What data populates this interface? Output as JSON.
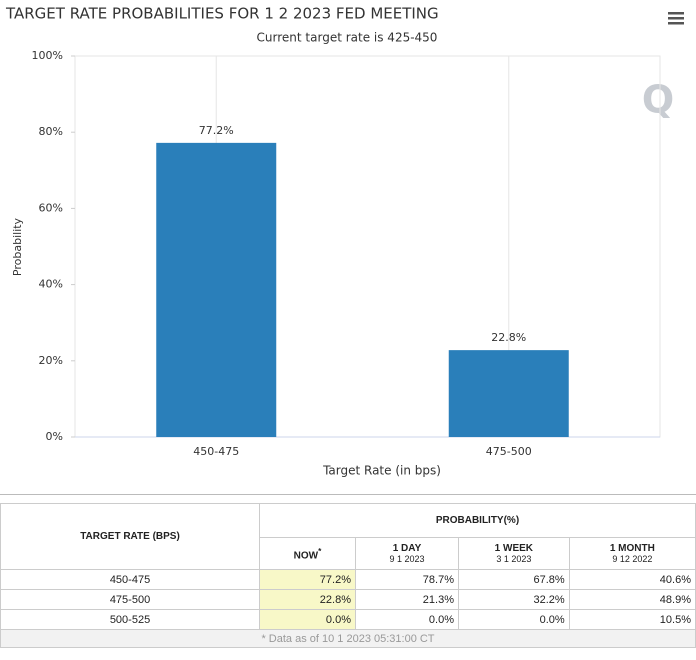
{
  "chart_data": {
    "type": "bar",
    "title": "TARGET RATE PROBABILITIES FOR 1 2 2023 FED MEETING",
    "subtitle": "Current target rate is 425-450",
    "y_label": "Probability",
    "x_label": "Target Rate (in bps)",
    "categories": [
      "450-475",
      "475-500"
    ],
    "values": [
      77.2,
      22.8
    ],
    "value_labels": [
      "77.2%",
      "22.8%"
    ],
    "color": "#2a7fba",
    "ylim": [
      0,
      100
    ],
    "yticks": [
      {
        "value": 0,
        "label": "0%"
      },
      {
        "value": 20,
        "label": "20%"
      },
      {
        "value": 40,
        "label": "40%"
      },
      {
        "value": 60,
        "label": "60%"
      },
      {
        "value": 80,
        "label": "80%"
      },
      {
        "value": 100,
        "label": "100%"
      }
    ]
  },
  "table": {
    "head": {
      "rate": "TARGET RATE (BPS)",
      "probability": "PROBABILITY(%)",
      "now": "NOW",
      "now_mark": "*",
      "columns": [
        [
          "1 DAY",
          "9 1 2023"
        ],
        [
          "1 WEEK",
          "3 1 2023"
        ],
        [
          "1 MONTH",
          "9 12 2022"
        ]
      ]
    },
    "rows": [
      [
        "450-475",
        "77.2%",
        "78.7%",
        "67.8%",
        "40.6%"
      ],
      [
        "475-500",
        "22.8%",
        "21.3%",
        "32.2%",
        "48.9%"
      ],
      [
        "500-525",
        "0.0%",
        "0.0%",
        "0.0%",
        "10.5%"
      ]
    ],
    "footer": "* Data as of 10 1 2023 05:31:00 CT"
  }
}
